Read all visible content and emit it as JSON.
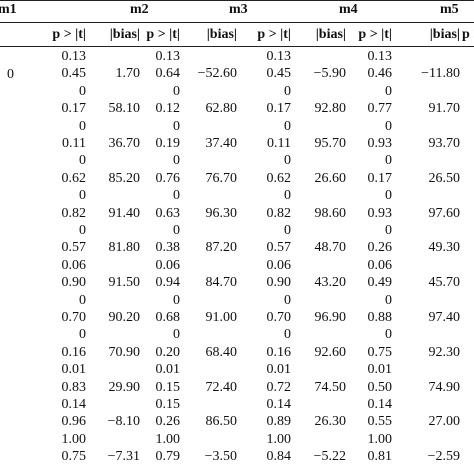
{
  "table": {
    "models": [
      "m1",
      "m2",
      "m3",
      "m4",
      "m5"
    ],
    "col_headers": {
      "c1": "p > |t|",
      "b2": "|bias|",
      "c2": "p > |t|",
      "b3": "|bias|",
      "c3": "p > |t|",
      "b4": "|bias|",
      "c4": "p > |t|",
      "b5": "|bias|",
      "c5": "p > |t|"
    },
    "left_stub_text": "0",
    "rows": [
      {
        "c1": "0.13",
        "b2": "",
        "c2": "0.13",
        "b3": "",
        "c3": "0.13",
        "b4": "",
        "c4": "0.13",
        "b5": ""
      },
      {
        "c1": "0.45",
        "b2": "1.70",
        "c2": "0.64",
        "b3": "−52.60",
        "c3": "0.45",
        "b4": "−5.90",
        "c4": "0.46",
        "b5": "−11.80"
      },
      {
        "c1": "0",
        "b2": "",
        "c2": "0",
        "b3": "",
        "c3": "0",
        "b4": "",
        "c4": "0",
        "b5": ""
      },
      {
        "c1": "0.17",
        "b2": "58.10",
        "c2": "0.12",
        "b3": "62.80",
        "c3": "0.17",
        "b4": "92.80",
        "c4": "0.77",
        "b5": "91.70"
      },
      {
        "c1": "0",
        "b2": "",
        "c2": "0",
        "b3": "",
        "c3": "0",
        "b4": "",
        "c4": "0",
        "b5": ""
      },
      {
        "c1": "0.11",
        "b2": "36.70",
        "c2": "0.19",
        "b3": "37.40",
        "c3": "0.11",
        "b4": "95.70",
        "c4": "0.93",
        "b5": "93.70"
      },
      {
        "c1": "0",
        "b2": "",
        "c2": "0",
        "b3": "",
        "c3": "0",
        "b4": "",
        "c4": "0",
        "b5": ""
      },
      {
        "c1": "0.62",
        "b2": "85.20",
        "c2": "0.76",
        "b3": "76.70",
        "c3": "0.62",
        "b4": "26.60",
        "c4": "0.17",
        "b5": "26.50"
      },
      {
        "c1": "0",
        "b2": "",
        "c2": "0",
        "b3": "",
        "c3": "0",
        "b4": "",
        "c4": "0",
        "b5": ""
      },
      {
        "c1": "0.82",
        "b2": "91.40",
        "c2": "0.63",
        "b3": "96.30",
        "c3": "0.82",
        "b4": "98.60",
        "c4": "0.93",
        "b5": "97.60"
      },
      {
        "c1": "0",
        "b2": "",
        "c2": "0",
        "b3": "",
        "c3": "0",
        "b4": "",
        "c4": "0",
        "b5": ""
      },
      {
        "c1": "0.57",
        "b2": "81.80",
        "c2": "0.38",
        "b3": "87.20",
        "c3": "0.57",
        "b4": "48.70",
        "c4": "0.26",
        "b5": "49.30"
      },
      {
        "c1": "0.06",
        "b2": "",
        "c2": "0.06",
        "b3": "",
        "c3": "0.06",
        "b4": "",
        "c4": "0.06",
        "b5": ""
      },
      {
        "c1": "0.90",
        "b2": "91.50",
        "c2": "0.94",
        "b3": "84.70",
        "c3": "0.90",
        "b4": "43.20",
        "c4": "0.49",
        "b5": "45.70"
      },
      {
        "c1": "0",
        "b2": "",
        "c2": "0",
        "b3": "",
        "c3": "0",
        "b4": "",
        "c4": "0",
        "b5": ""
      },
      {
        "c1": "0.70",
        "b2": "90.20",
        "c2": "0.68",
        "b3": "91.00",
        "c3": "0.70",
        "b4": "96.90",
        "c4": "0.88",
        "b5": "97.40"
      },
      {
        "c1": "0",
        "b2": "",
        "c2": "0",
        "b3": "",
        "c3": "0",
        "b4": "",
        "c4": "0",
        "b5": ""
      },
      {
        "c1": "0.16",
        "b2": "70.90",
        "c2": "0.20",
        "b3": "68.40",
        "c3": "0.16",
        "b4": "92.60",
        "c4": "0.75",
        "b5": "92.30"
      },
      {
        "c1": "0.01",
        "b2": "",
        "c2": "0.01",
        "b3": "",
        "c3": "0.01",
        "b4": "",
        "c4": "0.01",
        "b5": ""
      },
      {
        "c1": "0.83",
        "b2": "29.90",
        "c2": "0.15",
        "b3": "72.40",
        "c3": "0.72",
        "b4": "74.50",
        "c4": "0.50",
        "b5": "74.90"
      },
      {
        "c1": "0.14",
        "b2": "",
        "c2": "0.15",
        "b3": "",
        "c3": "0.14",
        "b4": "",
        "c4": "0.14",
        "b5": ""
      },
      {
        "c1": "0.96",
        "b2": "−8.10",
        "c2": "0.26",
        "b3": "86.50",
        "c3": "0.89",
        "b4": "26.30",
        "c4": "0.55",
        "b5": "27.00"
      },
      {
        "c1": "1.00",
        "b2": "",
        "c2": "1.00",
        "b3": "",
        "c3": "1.00",
        "b4": "",
        "c4": "1.00",
        "b5": ""
      },
      {
        "c1": "0.75",
        "b2": "−7.31",
        "c2": "0.79",
        "b3": "−3.50",
        "c3": "0.84",
        "b4": "−5.22",
        "c4": "0.81",
        "b5": "−2.59"
      }
    ]
  }
}
